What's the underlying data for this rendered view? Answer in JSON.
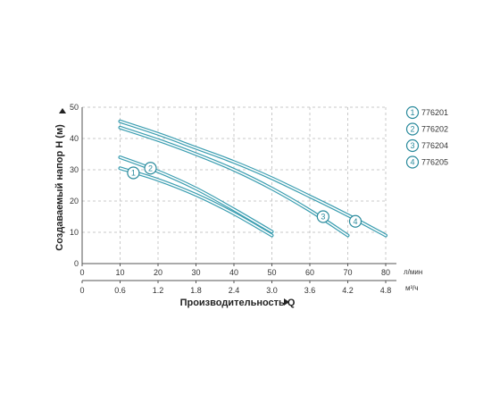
{
  "chart_data": {
    "type": "line",
    "xlabel": "Производительность Q",
    "ylabel": "Создаваемый напор H (м)",
    "x_unit": "л/мин",
    "x2_unit": "м³/ч",
    "xlim": [
      0,
      80
    ],
    "ylim": [
      0,
      50
    ],
    "x_ticks": [
      "0",
      "10",
      "20",
      "30",
      "40",
      "50",
      "60",
      "70",
      "80"
    ],
    "x2_ticks": [
      "0",
      "0.6",
      "1.2",
      "1.8",
      "2.4",
      "3.0",
      "3.6",
      "4.2",
      "4.8"
    ],
    "y_ticks": [
      "0",
      "10",
      "20",
      "30",
      "40",
      "50"
    ],
    "grid": true,
    "legend_position": "right",
    "series": [
      {
        "name": "776201",
        "badge": "1",
        "x": [
          10,
          20,
          30,
          40,
          50
        ],
        "y": [
          30.5,
          26.8,
          22.0,
          16.0,
          9.0
        ]
      },
      {
        "name": "776202",
        "badge": "2",
        "x": [
          10,
          20,
          30,
          40,
          50
        ],
        "y": [
          34.0,
          29.5,
          24.0,
          17.3,
          10.2
        ]
      },
      {
        "name": "776204",
        "badge": "3",
        "x": [
          10,
          20,
          30,
          40,
          50,
          60,
          70
        ],
        "y": [
          43.5,
          39.5,
          35.0,
          30.0,
          24.0,
          17.0,
          9.0
        ]
      },
      {
        "name": "776205",
        "badge": "4",
        "x": [
          10,
          20,
          30,
          40,
          50,
          60,
          70,
          80
        ],
        "y": [
          45.5,
          41.5,
          37.0,
          32.5,
          27.3,
          21.5,
          15.5,
          9.0
        ]
      }
    ],
    "badge_positions": [
      {
        "badge": "1",
        "x": 13.5,
        "y": 29
      },
      {
        "badge": "2",
        "x": 18,
        "y": 30.5
      },
      {
        "badge": "3",
        "x": 63.5,
        "y": 15
      },
      {
        "badge": "4",
        "x": 72,
        "y": 13.5
      }
    ],
    "colors": {
      "curve": "#3a9db0",
      "badge": "#2a8a9c",
      "grid": "#c8c8c8",
      "axis": "#555555"
    }
  }
}
